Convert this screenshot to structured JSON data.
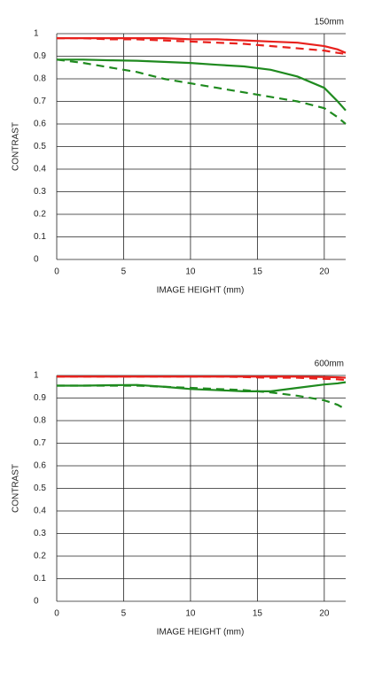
{
  "chart_data": [
    {
      "type": "line",
      "annotation": "150mm",
      "xlabel": "IMAGE HEIGHT (mm)",
      "ylabel": "CONTRAST",
      "x": [
        0,
        2,
        4,
        6,
        8,
        10,
        12,
        14,
        16,
        18,
        20,
        21,
        21.6
      ],
      "series": [
        {
          "color": "#e8211d",
          "style": "solid",
          "values": [
            0.98,
            0.98,
            0.98,
            0.98,
            0.98,
            0.975,
            0.975,
            0.97,
            0.965,
            0.96,
            0.945,
            0.93,
            0.915
          ]
        },
        {
          "color": "#e8211d",
          "style": "dashed",
          "values": [
            0.98,
            0.98,
            0.975,
            0.975,
            0.97,
            0.965,
            0.96,
            0.955,
            0.945,
            0.935,
            0.925,
            0.915,
            0.91
          ]
        },
        {
          "color": "#1f8a1f",
          "style": "solid",
          "values": [
            0.885,
            0.885,
            0.882,
            0.88,
            0.875,
            0.87,
            0.862,
            0.855,
            0.84,
            0.81,
            0.76,
            0.7,
            0.66
          ]
        },
        {
          "color": "#1f8a1f",
          "style": "dashed",
          "values": [
            0.885,
            0.87,
            0.85,
            0.83,
            0.8,
            0.78,
            0.76,
            0.74,
            0.72,
            0.7,
            0.67,
            0.63,
            0.6
          ]
        }
      ],
      "xlim": [
        0,
        21.6
      ],
      "xticks": [
        0,
        5,
        10,
        15,
        20
      ],
      "ylim": [
        0,
        1
      ],
      "yticks": [
        0,
        0.1,
        0.2,
        0.3,
        0.4,
        0.5,
        0.6,
        0.7,
        0.8,
        0.9,
        1
      ],
      "grid": true
    },
    {
      "type": "line",
      "annotation": "600mm",
      "xlabel": "IMAGE HEIGHT (mm)",
      "ylabel": "CONTRAST",
      "x": [
        0,
        2,
        4,
        6,
        8,
        10,
        12,
        14,
        16,
        18,
        20,
        21,
        21.6
      ],
      "series": [
        {
          "color": "#e8211d",
          "style": "solid",
          "values": [
            0.995,
            0.995,
            0.995,
            0.995,
            0.995,
            0.995,
            0.995,
            0.995,
            0.995,
            0.995,
            0.993,
            0.992,
            0.99
          ]
        },
        {
          "color": "#e8211d",
          "style": "dashed",
          "values": [
            0.995,
            0.995,
            0.995,
            0.995,
            0.995,
            0.995,
            0.995,
            0.993,
            0.99,
            0.99,
            0.985,
            0.983,
            0.98
          ]
        },
        {
          "color": "#1f8a1f",
          "style": "solid",
          "values": [
            0.955,
            0.955,
            0.957,
            0.958,
            0.95,
            0.94,
            0.935,
            0.93,
            0.93,
            0.945,
            0.96,
            0.965,
            0.97
          ]
        },
        {
          "color": "#1f8a1f",
          "style": "dashed",
          "values": [
            0.955,
            0.955,
            0.955,
            0.955,
            0.95,
            0.945,
            0.94,
            0.935,
            0.925,
            0.91,
            0.89,
            0.87,
            0.85
          ]
        }
      ],
      "xlim": [
        0,
        21.6
      ],
      "xticks": [
        0,
        5,
        10,
        15,
        20
      ],
      "ylim": [
        0,
        1
      ],
      "yticks": [
        0,
        0.1,
        0.2,
        0.3,
        0.4,
        0.5,
        0.6,
        0.7,
        0.8,
        0.9,
        1
      ],
      "grid": true
    }
  ]
}
